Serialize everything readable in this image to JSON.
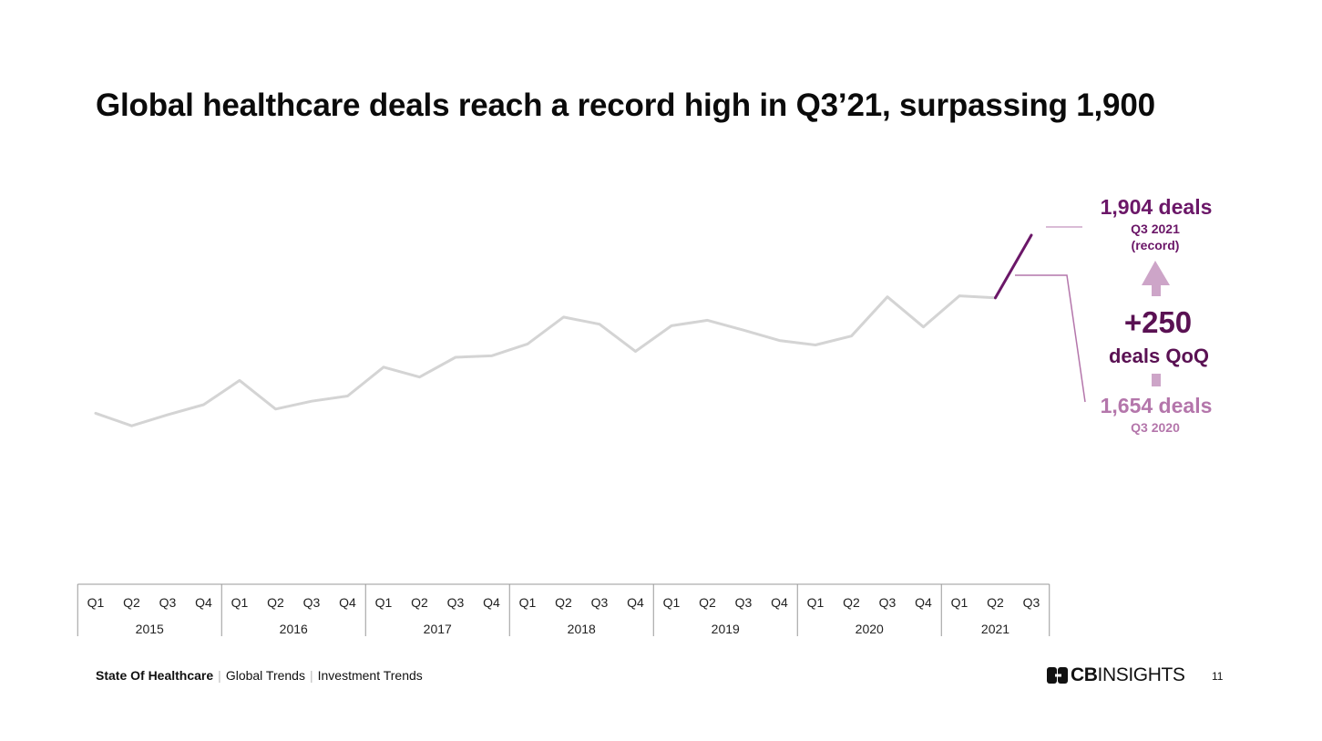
{
  "title": "Global healthcare deals reach a record high in Q3’21, surpassing 1,900",
  "colors": {
    "history_line": "#d4d4d4",
    "highlight_line": "#6b1768",
    "record_color": "#6b1768",
    "prior_color": "#b476ab",
    "arrow_color": "#cda5c8",
    "delta_color": "#5a1153",
    "axis_color": "#999999"
  },
  "chart_data": {
    "type": "line",
    "x_quarters": [
      "Q1",
      "Q2",
      "Q3",
      "Q4",
      "Q1",
      "Q2",
      "Q3",
      "Q4",
      "Q1",
      "Q2",
      "Q3",
      "Q4",
      "Q1",
      "Q2",
      "Q3",
      "Q4",
      "Q1",
      "Q2",
      "Q3",
      "Q4",
      "Q1",
      "Q2",
      "Q3",
      "Q4",
      "Q1",
      "Q2",
      "Q3"
    ],
    "x_years": [
      {
        "label": "2015",
        "quarters": 4
      },
      {
        "label": "2016",
        "quarters": 4
      },
      {
        "label": "2017",
        "quarters": 4
      },
      {
        "label": "2018",
        "quarters": 4
      },
      {
        "label": "2019",
        "quarters": 4
      },
      {
        "label": "2020",
        "quarters": 4
      },
      {
        "label": "2021",
        "quarters": 3
      }
    ],
    "values": [
      1182,
      1131,
      1176,
      1217,
      1315,
      1199,
      1231,
      1252,
      1369,
      1329,
      1409,
      1415,
      1463,
      1572,
      1543,
      1433,
      1537,
      1559,
      1519,
      1477,
      1459,
      1495,
      1654,
      1532,
      1658,
      1650,
      1904
    ],
    "highlight_from_index": 25,
    "ylim": [
      500,
      2100
    ],
    "grid": false,
    "legend": "none"
  },
  "annotations": {
    "record": {
      "value": "1,904 deals",
      "label": "Q3 2021",
      "note": "(record)"
    },
    "delta": {
      "value": "+250",
      "label": "deals QoQ"
    },
    "prior": {
      "value": "1,654 deals",
      "label": "Q3 2020"
    }
  },
  "footer": {
    "report": "State Of Healthcare",
    "section": "Global Trends",
    "subsection": "Investment Trends",
    "logo_bold": "CB",
    "logo_light": "INSIGHTS",
    "logo_icon": "cb-insights-logo-icon",
    "page": "11"
  }
}
